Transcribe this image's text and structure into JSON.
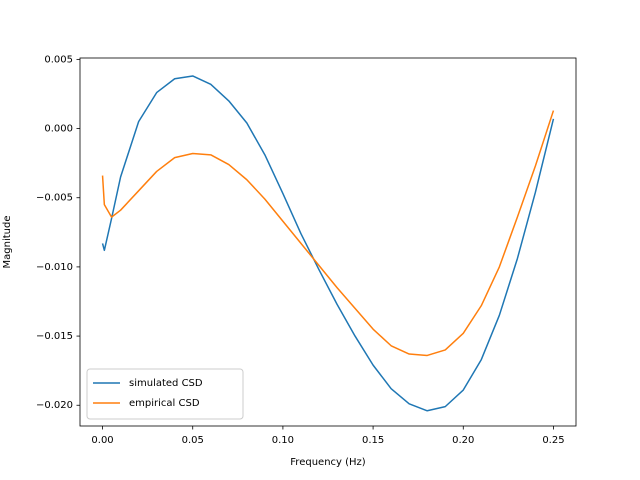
{
  "chart_data": {
    "type": "line",
    "xlabel": "Frequency (Hz)",
    "ylabel": "Magnitude",
    "x": [
      0,
      0.001,
      0.005,
      0.01,
      0.02,
      0.03,
      0.04,
      0.05,
      0.06,
      0.07,
      0.08,
      0.09,
      0.1,
      0.11,
      0.12,
      0.13,
      0.14,
      0.15,
      0.16,
      0.17,
      0.18,
      0.19,
      0.2,
      0.21,
      0.22,
      0.23,
      0.24,
      0.25
    ],
    "series": [
      {
        "name": "simulated CSD",
        "color": "#1f77b4",
        "values": [
          -0.0083,
          -0.0088,
          -0.0065,
          -0.0035,
          0.0005,
          0.0026,
          0.0036,
          0.0038,
          0.0032,
          0.002,
          0.0004,
          -0.0019,
          -0.0047,
          -0.0076,
          -0.0102,
          -0.0127,
          -0.015,
          -0.0171,
          -0.0188,
          -0.0199,
          -0.0204,
          -0.0201,
          -0.0189,
          -0.0167,
          -0.0135,
          -0.0094,
          -0.0046,
          0.0007
        ]
      },
      {
        "name": "empirical CSD",
        "color": "#ff7f0e",
        "values": [
          -0.0034,
          -0.0055,
          -0.0064,
          -0.0059,
          -0.0045,
          -0.0031,
          -0.0021,
          -0.0018,
          -0.0019,
          -0.0026,
          -0.0037,
          -0.0051,
          -0.0067,
          -0.0083,
          -0.0099,
          -0.0115,
          -0.013,
          -0.0145,
          -0.0157,
          -0.0163,
          -0.0164,
          -0.016,
          -0.0148,
          -0.0128,
          -0.01,
          -0.0064,
          -0.0027,
          0.0013
        ]
      }
    ],
    "xlim": [
      -0.0125,
      0.2625
    ],
    "ylim": [
      -0.0215,
      0.0051
    ],
    "xticks": [
      {
        "value": 0,
        "label": "0.00"
      },
      {
        "value": 0.05,
        "label": "0.05"
      },
      {
        "value": 0.1,
        "label": "0.10"
      },
      {
        "value": 0.15,
        "label": "0.15"
      },
      {
        "value": 0.2,
        "label": "0.20"
      },
      {
        "value": 0.25,
        "label": "0.25"
      }
    ],
    "yticks": [
      0.005,
      {
        "value": 0,
        "label": "0.000"
      },
      {
        "value": -0.005,
        "label": "−0.005"
      },
      {
        "value": -0.01,
        "label": "−0.010"
      },
      {
        "value": -0.015,
        "label": "−0.015"
      },
      {
        "value": -0.02,
        "label": "−0.020"
      }
    ],
    "grid": false,
    "legend": "lower left"
  }
}
